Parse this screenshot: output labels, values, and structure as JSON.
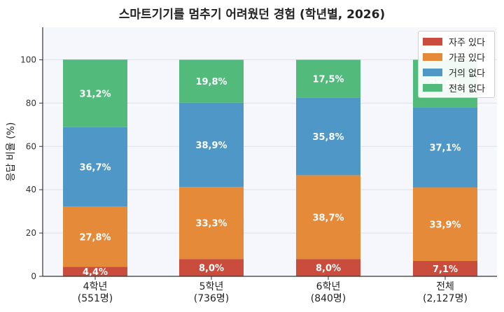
{
  "chart_data": {
    "type": "bar",
    "stacked": true,
    "title": "스마트기기를 멈추기 어려웠던 경험 (학년별, 2026)",
    "ylabel": "응답 비율 (%)",
    "xlabel": "",
    "categories": [
      "4학년\n(551명)",
      "5학년\n(736명)",
      "6학년\n(840명)",
      "전체\n(2,127명)"
    ],
    "ylim": [
      0,
      115
    ],
    "yticks": [
      0,
      20,
      40,
      60,
      80,
      100
    ],
    "grid": "horizontal",
    "legend_position": "top-right",
    "series": [
      {
        "name": "자주 있다",
        "color": "#c94c3c",
        "values": [
          4.4,
          8.0,
          8.0,
          7.1
        ],
        "labels": [
          "4,4%",
          "8,0%",
          "8,0%",
          "7,1%"
        ]
      },
      {
        "name": "가끔 있다",
        "color": "#e58a39",
        "values": [
          27.8,
          33.3,
          38.7,
          33.9
        ],
        "labels": [
          "27,8%",
          "33,3%",
          "38,7%",
          "33,9%"
        ]
      },
      {
        "name": "거의 없다",
        "color": "#4e97c7",
        "values": [
          36.7,
          38.9,
          35.8,
          37.1
        ],
        "labels": [
          "36,7%",
          "38,9%",
          "35,8%",
          "37,1%"
        ]
      },
      {
        "name": "전혀 없다",
        "color": "#52bb7b",
        "values": [
          31.2,
          19.8,
          17.5,
          21.9
        ],
        "labels": [
          "31,2%",
          "19,8%",
          "17,5%",
          "21,9%"
        ]
      }
    ]
  }
}
